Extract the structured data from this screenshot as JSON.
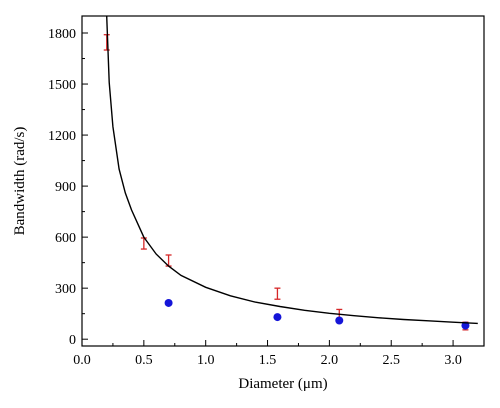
{
  "chart_data": {
    "type": "scatter",
    "xlabel": "Diameter (μm)",
    "ylabel": "Bandwidth (rad/s)",
    "xlim": [
      0.0,
      3.25
    ],
    "ylim": [
      -40,
      1900
    ],
    "x_ticks": [
      0.0,
      0.5,
      1.0,
      1.5,
      2.0,
      2.5,
      3.0
    ],
    "x_tick_labels": [
      "0.0",
      "0.5",
      "1.0",
      "1.5",
      "2.0",
      "2.5",
      "3.0"
    ],
    "y_ticks": [
      0,
      300,
      600,
      900,
      1200,
      1500,
      1800
    ],
    "y_tick_labels": [
      "0",
      "300",
      "600",
      "900",
      "1200",
      "1500",
      "1800"
    ],
    "grid": false,
    "legend": "none",
    "series": [
      {
        "kind": "errorbar",
        "color": "#d62728",
        "points": [
          {
            "x": 0.2,
            "low": 1700,
            "high": 1790
          },
          {
            "x": 0.5,
            "low": 530,
            "high": 595
          },
          {
            "x": 0.7,
            "low": 430,
            "high": 495
          },
          {
            "x": 1.58,
            "low": 235,
            "high": 300
          },
          {
            "x": 2.08,
            "low": 120,
            "high": 175
          },
          {
            "x": 3.1,
            "low": 55,
            "high": 100
          }
        ]
      },
      {
        "kind": "scatter",
        "color": "#1515d8",
        "x": [
          0.7,
          1.58,
          2.08,
          3.1
        ],
        "y": [
          213,
          130,
          110,
          80
        ]
      },
      {
        "kind": "line",
        "color": "#000000",
        "x": [
          0.2,
          0.22,
          0.25,
          0.3,
          0.35,
          0.4,
          0.5,
          0.6,
          0.7,
          0.8,
          1.0,
          1.2,
          1.4,
          1.6,
          1.8,
          2.0,
          2.2,
          2.4,
          2.6,
          2.8,
          3.0,
          3.2
        ],
        "y": [
          1900,
          1510,
          1250,
          1000,
          860,
          760,
          600,
          500,
          430,
          375,
          305,
          255,
          218,
          192,
          170,
          152,
          138,
          126,
          116,
          108,
          100,
          93
        ]
      }
    ]
  }
}
